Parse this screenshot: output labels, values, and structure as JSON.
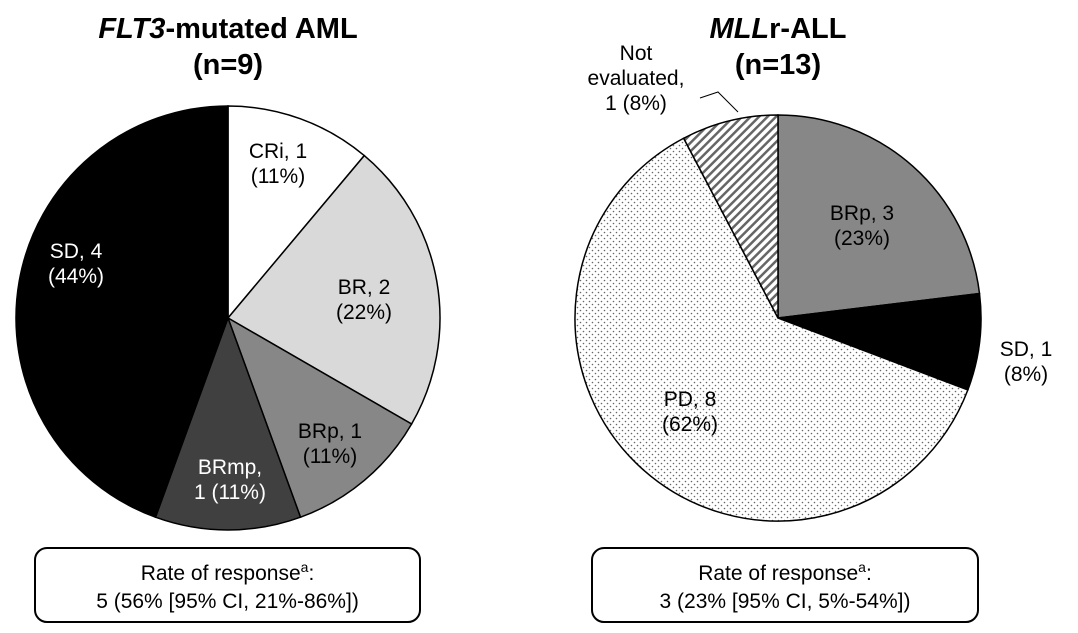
{
  "chart_data": [
    {
      "type": "pie",
      "title_italic": "FLT3",
      "title": "-mutated AML",
      "subtitle": "(n=9)",
      "categories": [
        "CRi, 1\n(11%)",
        "BR, 2\n(22%)",
        "BRp, 1\n(11%)",
        "BRmp,\n1 (11%)",
        "SD, 4\n(44%)"
      ],
      "values": [
        1,
        2,
        1,
        1,
        4
      ],
      "colors": [
        "#ffffff",
        "#d9d9d9",
        "#878787",
        "#404040",
        "#000000"
      ],
      "patterns": [
        null,
        null,
        null,
        null,
        null
      ],
      "footnote": {
        "label": "Rate of response",
        "sup": "a",
        "suffix": ":",
        "text": "5 (56% [95% CI, 21%-86%])"
      }
    },
    {
      "type": "pie",
      "title_italic": "MLL",
      "title": "r-ALL",
      "subtitle": "(n=13)",
      "categories": [
        "BRp, 3\n(23%)",
        "SD, 1\n(8%)",
        "PD, 8\n(62%)",
        "Not\nevaluated,\n1 (8%)"
      ],
      "values": [
        3,
        1,
        8,
        1
      ],
      "colors": [
        "#878787",
        "#000000",
        "#ffffff",
        "#ffffff"
      ],
      "patterns": [
        null,
        null,
        "dots",
        "hatch"
      ],
      "footnote": {
        "label": "Rate of response",
        "sup": "a",
        "suffix": ":",
        "text": "3 (23% [95% CI, 5%-54%])"
      }
    }
  ]
}
